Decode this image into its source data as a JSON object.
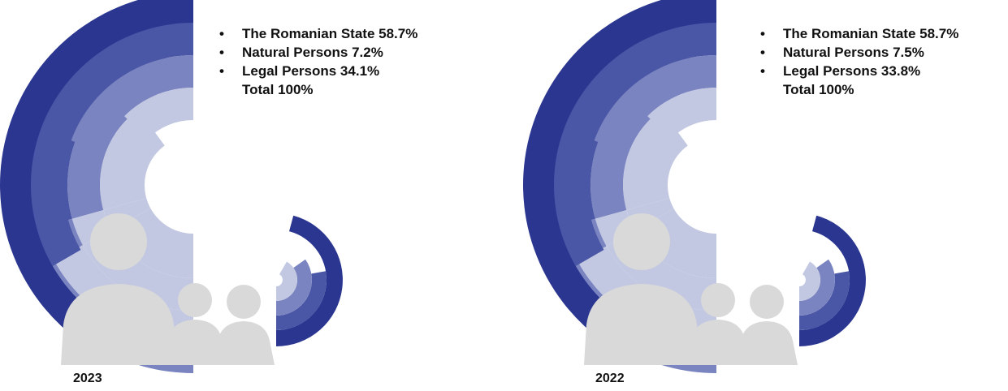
{
  "chart_data": [
    {
      "type": "pie",
      "year": "2023",
      "categories": [
        "The Romanian State",
        "Natural Persons",
        "Legal Persons"
      ],
      "values": [
        58.7,
        7.2,
        34.1
      ],
      "labels": [
        "The Romanian State 58.7%",
        "Natural Persons 7.2%",
        "Legal Persons 34.1%"
      ],
      "total_label": "Total 100%",
      "bullet": "•"
    },
    {
      "type": "pie",
      "year": "2022",
      "categories": [
        "The Romanian State",
        "Natural Persons",
        "Legal Persons"
      ],
      "values": [
        58.7,
        7.5,
        33.8
      ],
      "labels": [
        "The Romanian State 58.7%",
        "Natural Persons 7.5%",
        "Legal Persons 33.8%"
      ],
      "total_label": "Total 100%",
      "bullet": "•"
    }
  ],
  "colors": {
    "arc_dark": "#2b3690",
    "arc_mid": "#4a56a6",
    "arc_light": "#7a84c0",
    "arc_pale": "#c3c8e2",
    "people": "#d9d9d9"
  }
}
